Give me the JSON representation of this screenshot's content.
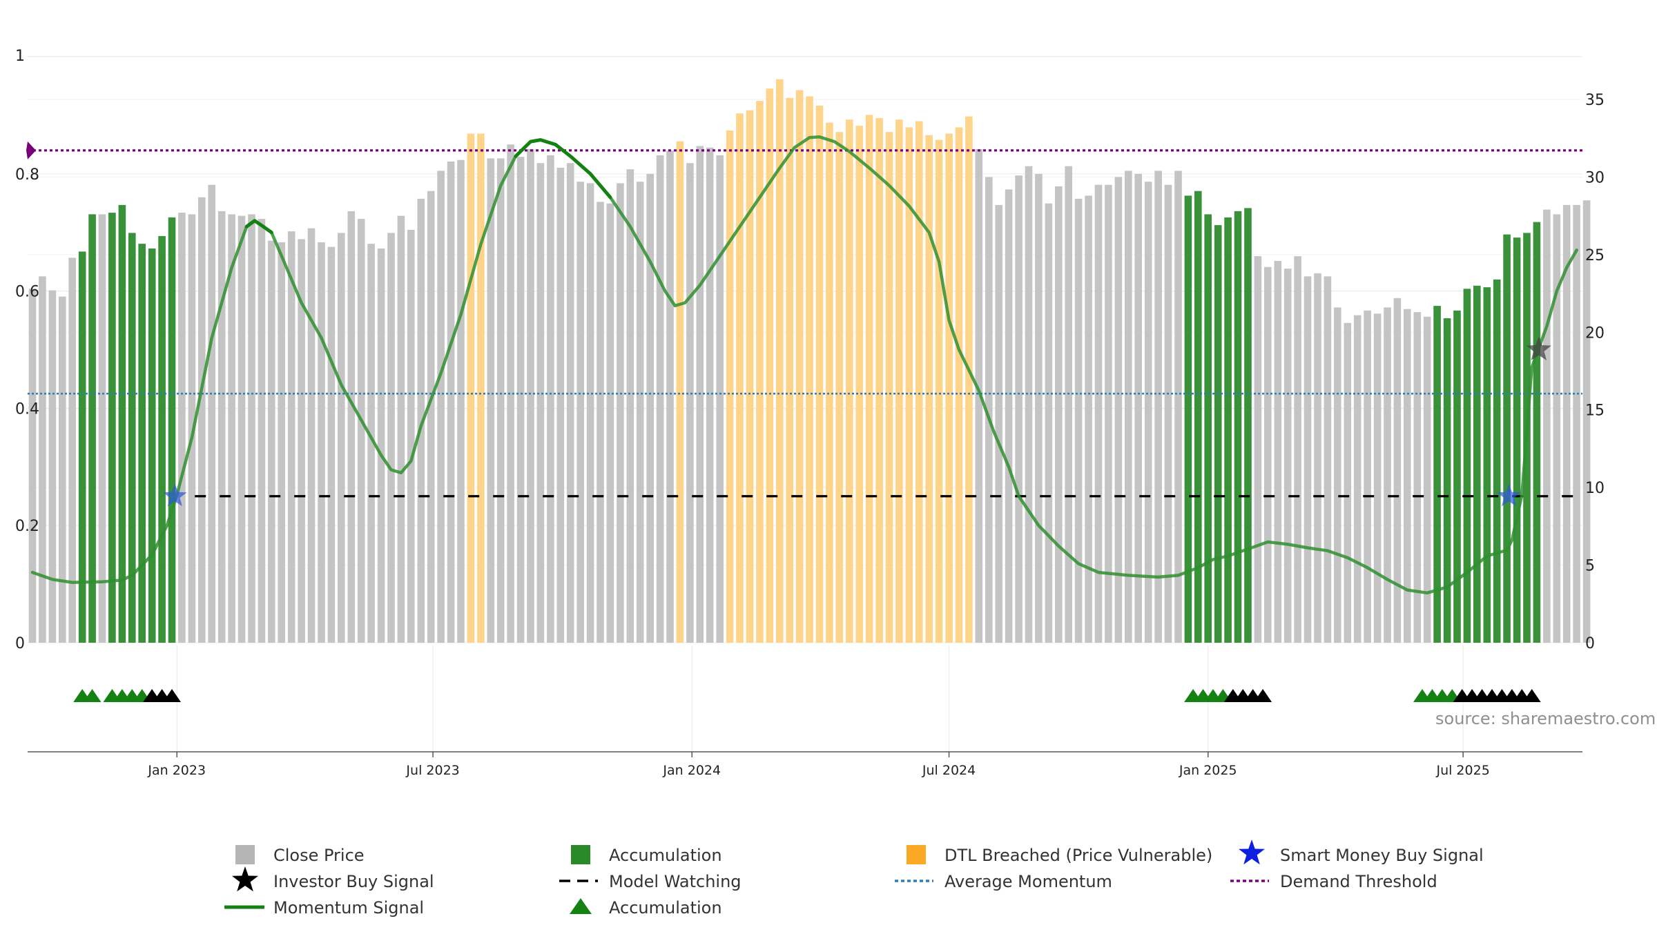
{
  "chart_data": {
    "type": "bar",
    "title": "",
    "source": "source: sharemaestro.com",
    "left_axis": {
      "range": [
        0,
        1
      ],
      "ticks": [
        0,
        0.2,
        0.4,
        0.6,
        0.8
      ],
      "tick_labels": [
        "0",
        "0.2",
        "0.4",
        "0.6",
        "0.8"
      ],
      "top_label": "1"
    },
    "right_axis": {
      "range": [
        0,
        35
      ],
      "ticks": [
        0,
        5,
        10,
        15,
        20,
        25,
        30,
        35
      ],
      "tick_labels": [
        "0",
        "5",
        "10",
        "15",
        "20",
        "25",
        "30",
        "35"
      ]
    },
    "x_axis": {
      "start_week_index": 0,
      "end_week_index": 155,
      "tick_labels": [
        "Jan 2023",
        "Jul 2023",
        "Jan 2024",
        "Jul 2024",
        "Jan 2025",
        "Jul 2025"
      ],
      "tick_week_index": [
        14.5,
        40.2,
        66.2,
        92,
        118,
        143.6
      ]
    },
    "bar_colors": {
      "gray": "#c4c4c4",
      "green": "#2e8b2e",
      "orange": "#fdd48a"
    },
    "close_price": [
      22.8,
      23.6,
      22.7,
      22.3,
      24.8,
      25.2,
      27.6,
      27.6,
      27.7,
      28.2,
      26.4,
      25.7,
      25.4,
      26.2,
      27.4,
      27.7,
      27.6,
      28.7,
      29.5,
      27.8,
      27.6,
      27.5,
      27.6,
      27.3,
      25.9,
      25.8,
      26.5,
      26.0,
      26.7,
      25.8,
      25.5,
      26.4,
      27.8,
      27.3,
      25.7,
      25.4,
      26.4,
      27.5,
      26.6,
      28.6,
      29.1,
      30.4,
      31.0,
      31.1,
      32.8,
      32.8,
      31.2,
      31.2,
      32.1,
      31.3,
      31.8,
      30.9,
      31.4,
      30.6,
      30.9,
      29.7,
      29.6,
      28.4,
      28.3,
      29.6,
      30.5,
      29.7,
      30.2,
      31.4,
      31.7,
      32.3,
      30.9,
      32.0,
      31.9,
      31.4,
      33.0,
      34.1,
      34.3,
      34.9,
      35.7,
      36.3,
      35.1,
      35.6,
      35.2,
      34.6,
      33.5,
      32.9,
      33.7,
      33.3,
      34.0,
      33.8,
      32.9,
      33.7,
      33.2,
      33.6,
      32.7,
      32.4,
      32.8,
      33.2,
      33.9,
      31.8,
      30.0,
      28.2,
      29.2,
      30.1,
      30.7,
      30.2,
      28.3,
      29.4,
      30.7,
      28.6,
      28.8,
      29.5,
      29.5,
      30.0,
      30.4,
      30.2,
      29.7,
      30.4,
      29.5,
      30.4,
      28.8,
      29.1,
      27.6,
      26.9,
      27.4,
      27.8,
      28.0,
      24.9,
      24.2,
      24.6,
      24.1,
      24.9,
      23.6,
      23.8,
      23.6,
      21.6,
      20.6,
      21.1,
      21.4,
      21.2,
      21.6,
      22.2,
      21.5,
      21.3,
      21.0,
      21.7,
      20.9,
      21.4,
      22.8,
      23.0,
      22.9,
      23.4,
      26.3,
      26.1,
      26.4,
      27.1,
      27.9,
      27.6,
      28.2,
      28.2,
      28.5
    ],
    "bar_state": [
      "gray",
      "gray",
      "gray",
      "gray",
      "gray",
      "green",
      "green",
      "gray",
      "green",
      "green",
      "green",
      "green",
      "green",
      "green",
      "green",
      "gray",
      "gray",
      "gray",
      "gray",
      "gray",
      "gray",
      "gray",
      "gray",
      "gray",
      "gray",
      "gray",
      "gray",
      "gray",
      "gray",
      "gray",
      "gray",
      "gray",
      "gray",
      "gray",
      "gray",
      "gray",
      "gray",
      "gray",
      "gray",
      "gray",
      "gray",
      "gray",
      "gray",
      "gray",
      "orange",
      "orange",
      "gray",
      "gray",
      "gray",
      "gray",
      "gray",
      "gray",
      "gray",
      "gray",
      "gray",
      "gray",
      "gray",
      "gray",
      "gray",
      "gray",
      "gray",
      "gray",
      "gray",
      "gray",
      "gray",
      "orange",
      "gray",
      "gray",
      "gray",
      "gray",
      "orange",
      "orange",
      "orange",
      "orange",
      "orange",
      "orange",
      "orange",
      "orange",
      "orange",
      "orange",
      "orange",
      "orange",
      "orange",
      "orange",
      "orange",
      "orange",
      "orange",
      "orange",
      "orange",
      "orange",
      "orange",
      "orange",
      "orange",
      "orange",
      "orange",
      "gray",
      "gray",
      "gray",
      "gray",
      "gray",
      "gray",
      "gray",
      "gray",
      "gray",
      "gray",
      "gray",
      "gray",
      "gray",
      "gray",
      "gray",
      "gray",
      "gray",
      "gray",
      "gray",
      "gray",
      "gray",
      "green",
      "green",
      "green",
      "green",
      "green",
      "green",
      "green",
      "gray",
      "gray",
      "gray",
      "gray",
      "gray",
      "gray",
      "gray",
      "gray",
      "gray",
      "gray",
      "gray",
      "gray",
      "gray",
      "gray",
      "gray",
      "gray",
      "gray",
      "gray",
      "green",
      "green",
      "green",
      "green",
      "green",
      "green",
      "green",
      "green",
      "green",
      "green",
      "green",
      "gray",
      "gray",
      "gray",
      "gray",
      "gray"
    ],
    "momentum_signal": [
      [
        0,
        0.12
      ],
      [
        2,
        0.108
      ],
      [
        4,
        0.103
      ],
      [
        7,
        0.104
      ],
      [
        9,
        0.107
      ],
      [
        10,
        0.115
      ],
      [
        12,
        0.15
      ],
      [
        13.5,
        0.2
      ],
      [
        14.5,
        0.252
      ],
      [
        16,
        0.35
      ],
      [
        18,
        0.52
      ],
      [
        20,
        0.64
      ],
      [
        21.5,
        0.71
      ],
      [
        22.3,
        0.72
      ],
      [
        23,
        0.712
      ],
      [
        24,
        0.7
      ],
      [
        25,
        0.66
      ],
      [
        27,
        0.58
      ],
      [
        29,
        0.52
      ],
      [
        31,
        0.44
      ],
      [
        33,
        0.38
      ],
      [
        35,
        0.32
      ],
      [
        36,
        0.295
      ],
      [
        37,
        0.29
      ],
      [
        38,
        0.31
      ],
      [
        39,
        0.37
      ],
      [
        41,
        0.46
      ],
      [
        43,
        0.56
      ],
      [
        45,
        0.68
      ],
      [
        47,
        0.78
      ],
      [
        48.5,
        0.83
      ],
      [
        50,
        0.855
      ],
      [
        51,
        0.858
      ],
      [
        52.5,
        0.85
      ],
      [
        54,
        0.83
      ],
      [
        56,
        0.8
      ],
      [
        58,
        0.76
      ],
      [
        60,
        0.71
      ],
      [
        62,
        0.65
      ],
      [
        63.5,
        0.6
      ],
      [
        64.5,
        0.575
      ],
      [
        65.5,
        0.58
      ],
      [
        67,
        0.61
      ],
      [
        69,
        0.66
      ],
      [
        71,
        0.71
      ],
      [
        73,
        0.76
      ],
      [
        75,
        0.81
      ],
      [
        76.5,
        0.845
      ],
      [
        78,
        0.862
      ],
      [
        79,
        0.863
      ],
      [
        80.5,
        0.855
      ],
      [
        82,
        0.838
      ],
      [
        84,
        0.81
      ],
      [
        86,
        0.78
      ],
      [
        88,
        0.745
      ],
      [
        90,
        0.7
      ],
      [
        91,
        0.65
      ],
      [
        92,
        0.55
      ],
      [
        93,
        0.5
      ],
      [
        95,
        0.43
      ],
      [
        96.5,
        0.36
      ],
      [
        98,
        0.3
      ],
      [
        99,
        0.25
      ],
      [
        101,
        0.2
      ],
      [
        103,
        0.165
      ],
      [
        105,
        0.135
      ],
      [
        107,
        0.12
      ],
      [
        110,
        0.115
      ],
      [
        113,
        0.112
      ],
      [
        115,
        0.115
      ],
      [
        117,
        0.128
      ],
      [
        118.5,
        0.142
      ],
      [
        120,
        0.148
      ],
      [
        122,
        0.16
      ],
      [
        124,
        0.172
      ],
      [
        126,
        0.168
      ],
      [
        128,
        0.162
      ],
      [
        130,
        0.157
      ],
      [
        132,
        0.145
      ],
      [
        134,
        0.128
      ],
      [
        136,
        0.108
      ],
      [
        138,
        0.09
      ],
      [
        140,
        0.085
      ],
      [
        142,
        0.095
      ],
      [
        144,
        0.12
      ],
      [
        146,
        0.148
      ],
      [
        148,
        0.158
      ],
      [
        148.5,
        0.175
      ],
      [
        149.5,
        0.252
      ],
      [
        150.5,
        0.47
      ],
      [
        152,
        0.54
      ],
      [
        153,
        0.6
      ],
      [
        154,
        0.64
      ],
      [
        155,
        0.67
      ]
    ],
    "momentum_bold_segments": [
      [
        21.5,
        24.3
      ],
      [
        47.5,
        58.5
      ]
    ],
    "average_momentum": 0.425,
    "demand_threshold": 0.84,
    "model_watching": {
      "y": 0.25,
      "from": 16.3,
      "to": 155
    },
    "smart_money_buy_signals": [
      [
        14.3,
        0.25
      ],
      [
        148.2,
        0.25
      ]
    ],
    "investor_buy_signals": [
      [
        151.2,
        0.5
      ]
    ],
    "accumulation_triangles": [
      [
        5,
        0
      ],
      [
        6,
        0
      ],
      [
        8,
        0
      ],
      [
        9,
        0
      ],
      [
        10,
        0
      ],
      [
        11,
        0
      ],
      [
        12,
        1
      ],
      [
        13,
        1
      ],
      [
        14,
        1
      ],
      [
        116.5,
        0
      ],
      [
        117.5,
        0
      ],
      [
        118.5,
        0
      ],
      [
        119.5,
        0
      ],
      [
        120.5,
        1
      ],
      [
        121.5,
        1
      ],
      [
        122.5,
        1
      ],
      [
        123.5,
        1
      ],
      [
        139.5,
        0
      ],
      [
        140.5,
        0
      ],
      [
        141.5,
        0
      ],
      [
        142.5,
        0
      ],
      [
        143.5,
        1
      ],
      [
        144.5,
        1
      ],
      [
        145.5,
        1
      ],
      [
        146.5,
        1
      ],
      [
        147.5,
        1
      ],
      [
        148.5,
        1
      ],
      [
        149.5,
        1
      ],
      [
        150.5,
        1
      ]
    ],
    "triangle_colors": [
      "#138213",
      "#000000"
    ],
    "line_colors": {
      "momentum": "#2f8f2f",
      "momentum_bold": "#138213",
      "average": "#2e7cb8",
      "threshold": "#7a007a",
      "watching": "#000000",
      "smart_star": "#2e57e0",
      "investor_star": "#444444"
    }
  },
  "legend": {
    "items": [
      {
        "label": "Close Price",
        "icon": "square-gray",
        "color": "#b5b5b5"
      },
      {
        "label": "Accumulation",
        "icon": "square-green",
        "color": "#2a8a2a"
      },
      {
        "label": "DTL Breached (Price Vulnerable)",
        "icon": "square-orange",
        "color": "#fba826"
      },
      {
        "label": "Smart Money Buy Signal",
        "icon": "star-blue",
        "color": "#0e1fe0"
      },
      {
        "label": "Investor Buy Signal",
        "icon": "star-black",
        "color": "#000000"
      },
      {
        "label": "Model Watching",
        "icon": "dashed-line-black",
        "color": "#000000"
      },
      {
        "label": "Average Momentum",
        "icon": "dotted-line-blue",
        "color": "#2e7cb8"
      },
      {
        "label": "Demand Threshold",
        "icon": "dotted-line-purple",
        "color": "#7a007a"
      },
      {
        "label": "Momentum Signal",
        "icon": "line-green",
        "color": "#138213"
      },
      {
        "label": "Accumulation",
        "icon": "triangle-green",
        "color": "#138213"
      }
    ]
  }
}
